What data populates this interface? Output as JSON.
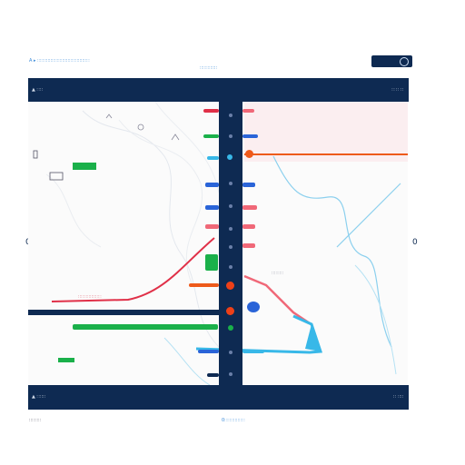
{
  "header": {
    "app_title": "A ▸ ∷∷∷∷∷∷∷∷∷∷∷∷∷∷∷∷∷∷",
    "center_label": "∷∷∷∷∷∷",
    "toggle_icon": "e-icon",
    "topbar_left": "▲ ∷∷",
    "topbar_right": "∷ ∷ ∷"
  },
  "map": {
    "marker_label": "∷∷∷∷",
    "region_label": "∷∷∷∷∷∷∷∷",
    "legend_label": "∷∷∷",
    "left_nav": "0",
    "right_nav": "0"
  },
  "footer": {
    "bottombar_left": "▲ ∷∷∷",
    "bottombar_right": "∷ ∷∷",
    "caption_left": "∷∷∷∷",
    "caption_center": "0∷∷∷∷∷∷∷"
  },
  "colors": {
    "navy": "#0e2a52",
    "red": "#e03048",
    "orange": "#ee5a1a",
    "green": "#1ab04a",
    "blue": "#2a64d8",
    "cyan": "#38b8e8",
    "pink": "#f06878"
  }
}
